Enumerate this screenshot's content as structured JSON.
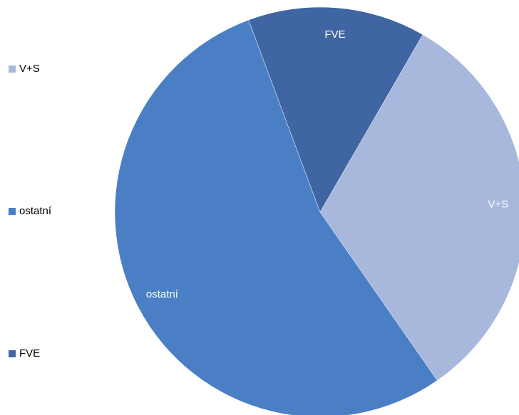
{
  "chart_data": {
    "type": "pie",
    "categories": [
      "V+S",
      "ostatní",
      "FVE"
    ],
    "values": [
      32,
      54,
      14
    ],
    "colors": [
      "#a7b8dc",
      "#4a7fc6",
      "#3f66a3"
    ],
    "start_angle": 30,
    "legend": "left"
  }
}
